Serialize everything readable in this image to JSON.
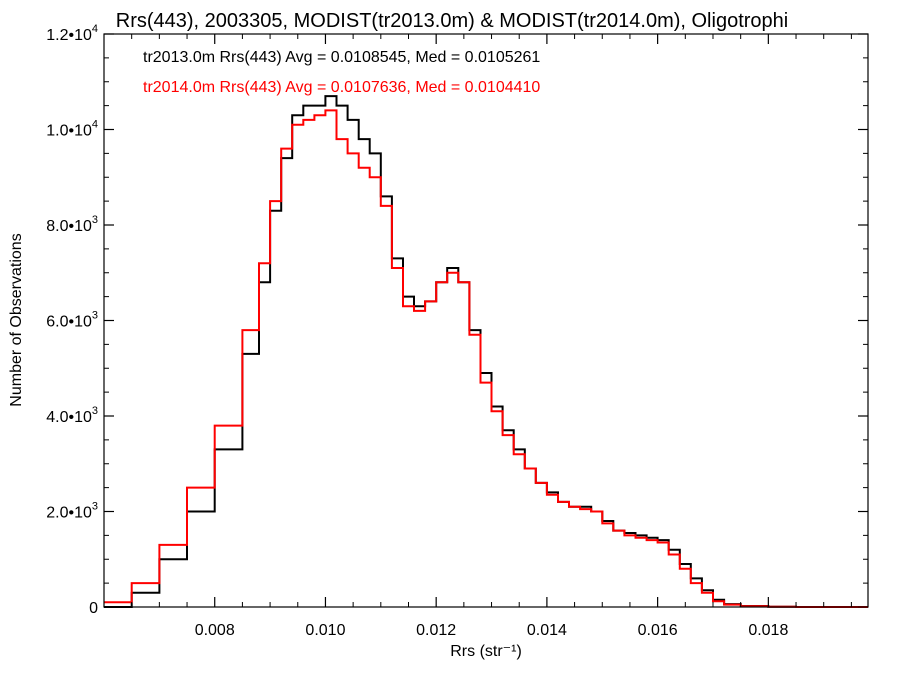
{
  "chart_data": {
    "type": "line",
    "title": "Rrs(443), 2003305, MODIST(tr2013.0m) & MODIST(tr2014.0m), Oligotrophi",
    "xlabel": "Rrs (str⁻¹)",
    "ylabel": "Number of Observations",
    "xlim": [
      0.006,
      0.0198
    ],
    "ylim": [
      0,
      12000
    ],
    "x_ticks": [
      0.008,
      0.01,
      0.012,
      0.014,
      0.016,
      0.018
    ],
    "x_tick_labels": [
      "0.008",
      "0.010",
      "0.012",
      "0.014",
      "0.016",
      "0.018"
    ],
    "y_ticks": [
      0,
      2000,
      4000,
      6000,
      8000,
      10000,
      12000
    ],
    "y_tick_labels": [
      {
        "mant": "0",
        "exp": ""
      },
      {
        "mant": "2.0•10",
        "exp": "3"
      },
      {
        "mant": "4.0•10",
        "exp": "3"
      },
      {
        "mant": "6.0•10",
        "exp": "3"
      },
      {
        "mant": "8.0•10",
        "exp": "3"
      },
      {
        "mant": "1.0•10",
        "exp": "4"
      },
      {
        "mant": "1.2•10",
        "exp": "4"
      }
    ],
    "grid": false,
    "legend_position": "top-left",
    "series": [
      {
        "name": "tr2013.0m",
        "legend_text": "tr2013.0m Rrs(443) Avg = 0.0108545, Med = 0.0105261",
        "color": "#000000",
        "x": [
          0.006,
          0.0065,
          0.007,
          0.0075,
          0.008,
          0.0085,
          0.0088,
          0.009,
          0.0092,
          0.0094,
          0.0096,
          0.0098,
          0.01,
          0.0102,
          0.0104,
          0.0106,
          0.0108,
          0.011,
          0.0112,
          0.0114,
          0.0116,
          0.0118,
          0.012,
          0.0122,
          0.0124,
          0.0126,
          0.0128,
          0.013,
          0.0132,
          0.0134,
          0.0136,
          0.0138,
          0.014,
          0.0142,
          0.0144,
          0.0146,
          0.0148,
          0.015,
          0.0152,
          0.0154,
          0.0156,
          0.0158,
          0.016,
          0.0162,
          0.0164,
          0.0166,
          0.0168,
          0.017,
          0.0172,
          0.0175,
          0.018,
          0.0185,
          0.019,
          0.0198
        ],
        "y": [
          0,
          300,
          1000,
          2000,
          3300,
          5300,
          6800,
          8300,
          9400,
          10300,
          10500,
          10500,
          10700,
          10500,
          10200,
          9800,
          9500,
          8600,
          7300,
          6500,
          6300,
          6400,
          6800,
          7100,
          6800,
          5800,
          4900,
          4200,
          3700,
          3300,
          2900,
          2600,
          2400,
          2200,
          2100,
          2100,
          2000,
          1800,
          1600,
          1550,
          1500,
          1450,
          1400,
          1200,
          900,
          600,
          350,
          150,
          60,
          20,
          5,
          0,
          0,
          0
        ]
      },
      {
        "name": "tr2014.0m",
        "legend_text": "tr2014.0m Rrs(443) Avg = 0.0107636, Med = 0.0104410",
        "color": "#ff0000",
        "x": [
          0.006,
          0.0065,
          0.007,
          0.0075,
          0.008,
          0.0085,
          0.0088,
          0.009,
          0.0092,
          0.0094,
          0.0096,
          0.0098,
          0.01,
          0.0102,
          0.0104,
          0.0106,
          0.0108,
          0.011,
          0.0112,
          0.0114,
          0.0116,
          0.0118,
          0.012,
          0.0122,
          0.0124,
          0.0126,
          0.0128,
          0.013,
          0.0132,
          0.0134,
          0.0136,
          0.0138,
          0.014,
          0.0142,
          0.0144,
          0.0146,
          0.0148,
          0.015,
          0.0152,
          0.0154,
          0.0156,
          0.0158,
          0.016,
          0.0162,
          0.0164,
          0.0166,
          0.0168,
          0.017,
          0.0172,
          0.0175,
          0.018,
          0.0185,
          0.019,
          0.0198
        ],
        "y": [
          100,
          500,
          1300,
          2500,
          3800,
          5800,
          7200,
          8500,
          9600,
          10100,
          10200,
          10300,
          10400,
          9800,
          9500,
          9200,
          9000,
          8400,
          7100,
          6300,
          6200,
          6400,
          6800,
          7000,
          6800,
          5700,
          4700,
          4100,
          3600,
          3200,
          2900,
          2600,
          2350,
          2200,
          2100,
          2050,
          2000,
          1750,
          1600,
          1500,
          1450,
          1400,
          1350,
          1100,
          800,
          500,
          300,
          120,
          50,
          15,
          5,
          0,
          0,
          0
        ]
      }
    ]
  }
}
